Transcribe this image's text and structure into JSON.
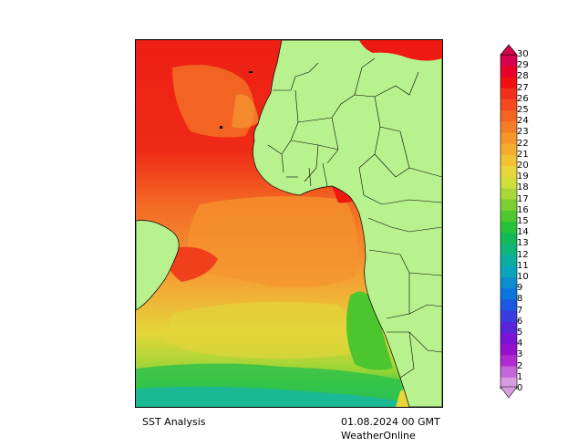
{
  "map": {
    "title": "SST Analysis",
    "timestamp": "01.08.2024 00 GMT",
    "credit": "WeatherOnline",
    "colors": {
      "land": "#b8f28e",
      "ocean_warmest": "#ee1a12",
      "ocean_warm": "#f36a25",
      "ocean_mid": "#f5a034",
      "ocean_cool": "#e7d93a",
      "ocean_cold": "#2fc95f",
      "ocean_coldest": "#18b8a8"
    }
  },
  "legend": {
    "labels": [
      "30",
      "29",
      "28",
      "27",
      "26",
      "25",
      "24",
      "23",
      "22",
      "21",
      "20",
      "19",
      "18",
      "17",
      "16",
      "15",
      "14",
      "13",
      "12",
      "11",
      "10",
      "9",
      "8",
      "7",
      "6",
      "5",
      "4",
      "3",
      "2",
      "1",
      "0"
    ],
    "colors": [
      "#d5004f",
      "#e8002a",
      "#f01010",
      "#f22f1a",
      "#f34a1f",
      "#f4631f",
      "#f57d24",
      "#f69628",
      "#f5ac2e",
      "#f3c234",
      "#e8d53a",
      "#cfde3a",
      "#a8d836",
      "#7ccf32",
      "#4ec82f",
      "#27c13a",
      "#14b957",
      "#0eb57b",
      "#0aaea0",
      "#0aa4bd",
      "#0a8ed0",
      "#0a75dd",
      "#1b57e0",
      "#3a3ce0",
      "#5a24db",
      "#7914d6",
      "#9810cf",
      "#b02cd2",
      "#c566d8",
      "#d89de0"
    ]
  }
}
